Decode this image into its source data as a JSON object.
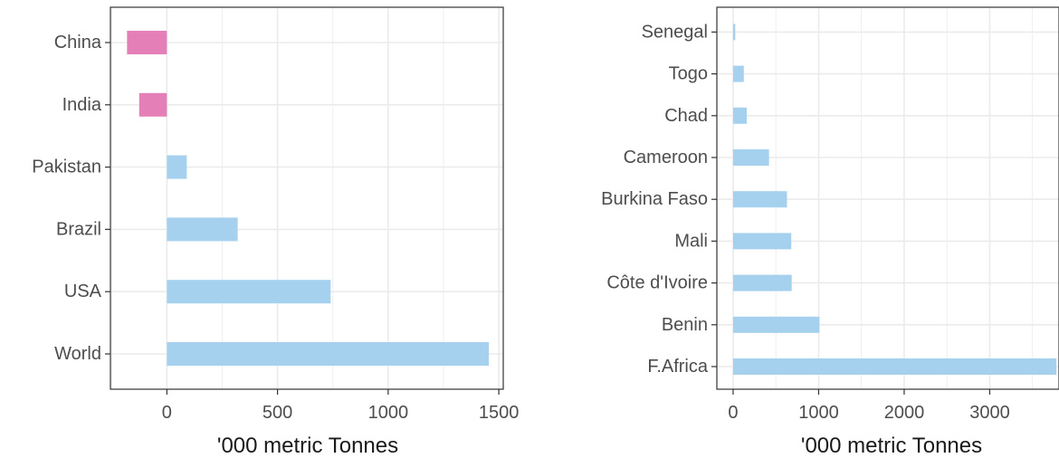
{
  "colors": {
    "positive": "#a6d1ee",
    "negative": "#e57fb8",
    "grid": "#ebebeb",
    "axis": "#333333"
  },
  "chart_data": [
    {
      "type": "bar",
      "orientation": "horizontal",
      "categories": [
        "China",
        "India",
        "Pakistan",
        "Brazil",
        "USA",
        "World"
      ],
      "values": [
        -180,
        -125,
        90,
        320,
        740,
        1455
      ],
      "xlabel": "'000 metric Tonnes",
      "xlim": [
        -255,
        1520
      ],
      "xticks": [
        0,
        500,
        1000,
        1500
      ],
      "xtick_labels": [
        "0",
        "500",
        "1000",
        "1500"
      ],
      "grid": true
    },
    {
      "type": "bar",
      "orientation": "horizontal",
      "categories": [
        "Senegal",
        "Togo",
        "Chad",
        "Cameroon",
        "Burkina Faso",
        "Mali",
        "Côte d'Ivoire",
        "Benin",
        "F.Africa"
      ],
      "values": [
        25,
        125,
        160,
        420,
        630,
        680,
        685,
        1010,
        3780
      ],
      "xlabel": "'000 metric Tonnes",
      "xlim": [
        -190,
        3810
      ],
      "xticks": [
        0,
        1000,
        2000,
        3000
      ],
      "xtick_labels": [
        "0",
        "1000",
        "2000",
        "3000"
      ],
      "grid": true
    }
  ]
}
